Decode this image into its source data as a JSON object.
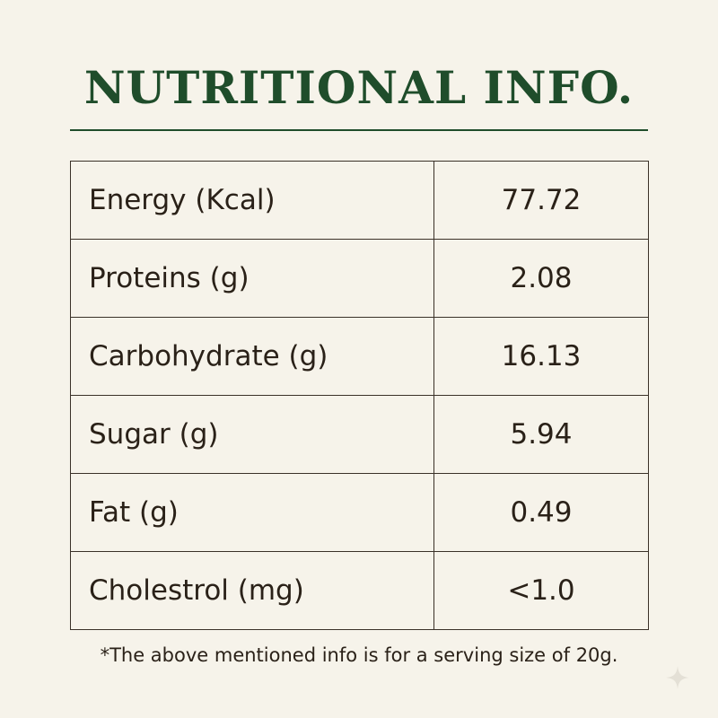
{
  "header": {
    "title": "NUTRITIONAL INFO."
  },
  "table": {
    "rows": [
      [
        "Energy (Kcal)",
        "77.72"
      ],
      [
        "Proteins (g)",
        "2.08"
      ],
      [
        "Carbohydrate (g)",
        "16.13"
      ],
      [
        "Sugar (g)",
        "5.94"
      ],
      [
        "Fat (g)",
        "0.49"
      ],
      [
        "Cholestrol (mg)",
        "<1.0"
      ]
    ]
  },
  "footnote": "*The above mentioned info is for a serving size of 20g."
}
